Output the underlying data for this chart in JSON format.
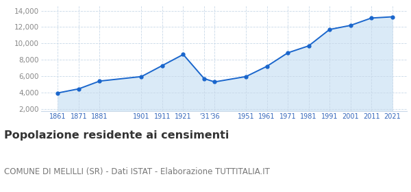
{
  "years": [
    1861,
    1871,
    1881,
    1901,
    1911,
    1921,
    1931,
    1936,
    1951,
    1961,
    1971,
    1981,
    1991,
    2001,
    2011,
    2021
  ],
  "population": [
    3950,
    4450,
    5400,
    5950,
    7300,
    8650,
    5700,
    5300,
    5950,
    7200,
    8850,
    9700,
    11700,
    12200,
    13100,
    13250
  ],
  "yticks": [
    2000,
    4000,
    6000,
    8000,
    10000,
    12000,
    14000
  ],
  "ylim": [
    1700,
    14600
  ],
  "xlim": [
    1853,
    2028
  ],
  "line_color": "#1a66cc",
  "fill_color": "#daeaf7",
  "marker_size": 3.5,
  "title": "Popolazione residente ai censimenti",
  "subtitle": "COMUNE DI MELILLI (SR) - Dati ISTAT - Elaborazione TUTTITALIA.IT",
  "title_fontsize": 11.5,
  "subtitle_fontsize": 8.5,
  "bg_color": "#ffffff",
  "grid_color": "#c8d8e8",
  "tick_color": "#3366bb",
  "ytick_color": "#888888"
}
